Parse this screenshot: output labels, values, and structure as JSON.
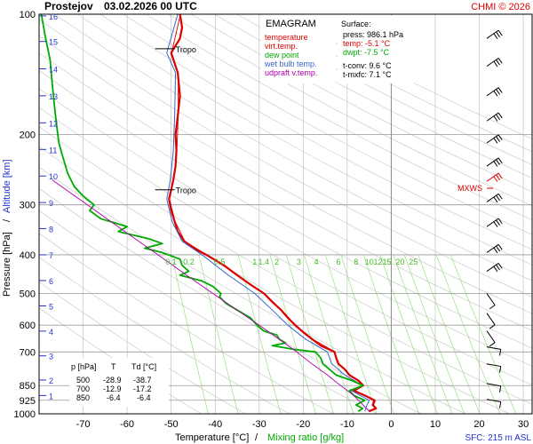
{
  "header": {
    "station": "Prostejov",
    "datetime": "03.02.2026 00 UTC",
    "copyright": "CHMI © 2026"
  },
  "chart_data": {
    "type": "line",
    "title": "EMAGRAM",
    "xlabel": "Temperature [°C]",
    "xlabel_sep": "/",
    "xlabel2": "Mixing ratio [g/kg]",
    "ylabel": "Pressure [hPa]",
    "ylabel_sep": "/",
    "ylabel2": "Altitude [km]",
    "xlim": [
      -80,
      32
    ],
    "ylim": [
      1000,
      100
    ],
    "y_scale": "log",
    "grid": true,
    "x_ticks": [
      -70,
      -60,
      -50,
      -40,
      -30,
      -20,
      -10,
      0,
      10,
      20,
      30
    ],
    "p_ticks": [
      100,
      200,
      300,
      400,
      500,
      600,
      700,
      850,
      925,
      1000
    ],
    "km_ticks": [
      {
        "km": "16",
        "p": 101
      },
      {
        "km": "15",
        "p": 117
      },
      {
        "km": "14",
        "p": 137
      },
      {
        "km": "13",
        "p": 160
      },
      {
        "km": "12",
        "p": 187
      },
      {
        "km": "11",
        "p": 218
      },
      {
        "km": "10",
        "p": 254
      },
      {
        "km": "9",
        "p": 296
      },
      {
        "km": "8",
        "p": 344
      },
      {
        "km": "7",
        "p": 400
      },
      {
        "km": "6",
        "p": 464
      },
      {
        "km": "5",
        "p": 537
      },
      {
        "km": "4",
        "p": 621
      },
      {
        "km": "3",
        "p": 716
      },
      {
        "km": "2",
        "p": 823
      },
      {
        "km": "1",
        "p": 900
      }
    ],
    "mixing_ratio_labels": [
      "0.1",
      "0.2",
      "0.5",
      "1",
      "1.4",
      "2",
      "3",
      "4",
      "6",
      "8",
      "10",
      "12",
      "15",
      "20",
      "25"
    ],
    "mixing_ratio_label_temps": [
      -50,
      -46,
      -39,
      -31,
      -29,
      -26,
      -21,
      -17,
      -12,
      -8,
      -5,
      -3,
      -1,
      2,
      5
    ],
    "legend": [
      {
        "name": "temperature",
        "color": "#dd0000"
      },
      {
        "name": "virt.temp.",
        "color": "#dd0000"
      },
      {
        "name": "dew point",
        "color": "#00aa00"
      },
      {
        "name": "wet bulb temp.",
        "color": "#3366cc"
      },
      {
        "name": "udpraft v.temp.",
        "color": "#aa00aa"
      }
    ],
    "surface": {
      "heading": "Surface:",
      "press": "press: 986.1 hPa",
      "temp": "temp: -5.1 °C",
      "dwpt": "dwpt: -7.5 °C",
      "tconv": "t-conv: 9.6 °C",
      "tmxfc": "t-mxfc: 7.1 °C"
    },
    "levels_table": {
      "headers": [
        "p [hPa]",
        "T",
        "Td [°C]"
      ],
      "rows": [
        [
          "500",
          "-28.9",
          "-38.7"
        ],
        [
          "700",
          "-12.9",
          "-17.2"
        ],
        [
          "850",
          "-6.4",
          "-6.4"
        ]
      ]
    },
    "tropopause": [
      {
        "label": "Tropo",
        "p": 122,
        "T": -50
      },
      {
        "label": "Tropo",
        "p": 275,
        "T": -50
      }
    ],
    "max_wind_label": "MXWS",
    "max_wind_p": 262,
    "sfc_label": "SFC: 215 m ASL",
    "series": [
      {
        "name": "temperature",
        "color": "#dd0000",
        "points": [
          [
            986,
            -5.1
          ],
          [
            970,
            -3.5
          ],
          [
            950,
            -4.2
          ],
          [
            925,
            -3.8
          ],
          [
            900,
            -6.0
          ],
          [
            875,
            -8.5
          ],
          [
            850,
            -6.4
          ],
          [
            825,
            -7.5
          ],
          [
            800,
            -9.5
          ],
          [
            775,
            -10.5
          ],
          [
            750,
            -12.0
          ],
          [
            725,
            -12.5
          ],
          [
            700,
            -12.9
          ],
          [
            675,
            -16.0
          ],
          [
            650,
            -18.0
          ],
          [
            625,
            -20.0
          ],
          [
            600,
            -21.8
          ],
          [
            575,
            -23.5
          ],
          [
            550,
            -25.0
          ],
          [
            525,
            -27.0
          ],
          [
            500,
            -28.9
          ],
          [
            475,
            -32.0
          ],
          [
            450,
            -35.0
          ],
          [
            425,
            -38.0
          ],
          [
            400,
            -42.0
          ],
          [
            390,
            -44.0
          ],
          [
            380,
            -45.5
          ],
          [
            370,
            -47.0
          ],
          [
            350,
            -48.5
          ],
          [
            330,
            -49.2
          ],
          [
            310,
            -50.0
          ],
          [
            290,
            -50.5
          ],
          [
            275,
            -50.0
          ],
          [
            260,
            -49.5
          ],
          [
            240,
            -49.0
          ],
          [
            220,
            -48.8
          ],
          [
            200,
            -49.0
          ],
          [
            180,
            -48.5
          ],
          [
            160,
            -48.0
          ],
          [
            140,
            -48.5
          ],
          [
            125,
            -50.0
          ],
          [
            115,
            -48.0
          ],
          [
            108,
            -47.5
          ],
          [
            100,
            -48.0
          ]
        ]
      },
      {
        "name": "virt.temp.",
        "color": "#dd0000",
        "points": [
          [
            986,
            -4.9
          ],
          [
            970,
            -3.3
          ],
          [
            950,
            -4.0
          ],
          [
            925,
            -3.6
          ],
          [
            900,
            -5.8
          ],
          [
            875,
            -8.3
          ],
          [
            850,
            -6.2
          ],
          [
            825,
            -7.3
          ],
          [
            800,
            -9.4
          ],
          [
            775,
            -10.4
          ],
          [
            750,
            -11.9
          ],
          [
            725,
            -12.4
          ],
          [
            700,
            -12.8
          ],
          [
            650,
            -17.9
          ],
          [
            600,
            -21.7
          ],
          [
            550,
            -24.9
          ],
          [
            500,
            -28.8
          ],
          [
            450,
            -34.9
          ],
          [
            400,
            -41.9
          ],
          [
            370,
            -46.9
          ],
          [
            330,
            -49.1
          ],
          [
            290,
            -50.4
          ],
          [
            260,
            -49.4
          ],
          [
            220,
            -48.7
          ],
          [
            180,
            -48.4
          ],
          [
            140,
            -48.4
          ],
          [
            125,
            -49.9
          ],
          [
            100,
            -47.9
          ]
        ]
      },
      {
        "name": "wet bulb temp.",
        "color": "#3366cc",
        "points": [
          [
            986,
            -6.0
          ],
          [
            950,
            -5.5
          ],
          [
            925,
            -5.0
          ],
          [
            900,
            -7.0
          ],
          [
            875,
            -9.0
          ],
          [
            850,
            -6.6
          ],
          [
            800,
            -10.5
          ],
          [
            750,
            -13.5
          ],
          [
            700,
            -14.5
          ],
          [
            650,
            -19.5
          ],
          [
            600,
            -23.5
          ],
          [
            550,
            -27.0
          ],
          [
            500,
            -31.0
          ],
          [
            450,
            -37.0
          ],
          [
            400,
            -43.0
          ],
          [
            370,
            -47.5
          ],
          [
            330,
            -49.8
          ],
          [
            290,
            -51.0
          ],
          [
            260,
            -50.2
          ],
          [
            220,
            -49.5
          ],
          [
            180,
            -49.2
          ],
          [
            140,
            -49.0
          ],
          [
            125,
            -51.0
          ],
          [
            100,
            -48.5
          ]
        ]
      },
      {
        "name": "dew point",
        "color": "#00aa00",
        "points": [
          [
            986,
            -7.5
          ],
          [
            970,
            -6.5
          ],
          [
            950,
            -8.0
          ],
          [
            925,
            -6.0
          ],
          [
            900,
            -8.5
          ],
          [
            875,
            -9.5
          ],
          [
            850,
            -6.4
          ],
          [
            825,
            -9.0
          ],
          [
            800,
            -12.5
          ],
          [
            775,
            -14.0
          ],
          [
            750,
            -15.5
          ],
          [
            725,
            -16.0
          ],
          [
            700,
            -17.2
          ],
          [
            690,
            -22.0
          ],
          [
            675,
            -27.0
          ],
          [
            665,
            -24.0
          ],
          [
            650,
            -25.5
          ],
          [
            635,
            -26.0
          ],
          [
            620,
            -29.0
          ],
          [
            600,
            -30.5
          ],
          [
            575,
            -32.0
          ],
          [
            550,
            -35.0
          ],
          [
            530,
            -37.5
          ],
          [
            510,
            -39.0
          ],
          [
            500,
            -38.7
          ],
          [
            480,
            -40.5
          ],
          [
            465,
            -43.0
          ],
          [
            450,
            -48.0
          ],
          [
            440,
            -46.0
          ],
          [
            425,
            -47.5
          ],
          [
            410,
            -48.0
          ],
          [
            395,
            -52.0
          ],
          [
            385,
            -56.0
          ],
          [
            375,
            -52.0
          ],
          [
            365,
            -55.0
          ],
          [
            350,
            -62.0
          ],
          [
            340,
            -60.0
          ],
          [
            325,
            -66.0
          ],
          [
            310,
            -68.5
          ],
          [
            300,
            -67.5
          ],
          [
            285,
            -70.0
          ],
          [
            270,
            -72.0
          ],
          [
            250,
            -73.5
          ],
          [
            230,
            -74.5
          ],
          [
            210,
            -75.5
          ],
          [
            190,
            -76.0
          ],
          [
            170,
            -76.5
          ],
          [
            150,
            -77.0
          ],
          [
            130,
            -77.5
          ],
          [
            115,
            -78.5
          ],
          [
            100,
            -79.5
          ]
        ]
      },
      {
        "name": "udpraft v.temp.",
        "color": "#aa00aa",
        "points": [
          [
            986,
            -5.0
          ],
          [
            900,
            -8.5
          ],
          [
            850,
            -11.5
          ],
          [
            800,
            -14.5
          ],
          [
            750,
            -18.0
          ],
          [
            700,
            -21.5
          ],
          [
            650,
            -25.5
          ],
          [
            600,
            -30.0
          ],
          [
            550,
            -35.0
          ],
          [
            500,
            -40.5
          ],
          [
            450,
            -46.5
          ],
          [
            400,
            -53.0
          ],
          [
            350,
            -60.5
          ],
          [
            300,
            -69.0
          ],
          [
            260,
            -77.0
          ]
        ]
      }
    ]
  }
}
